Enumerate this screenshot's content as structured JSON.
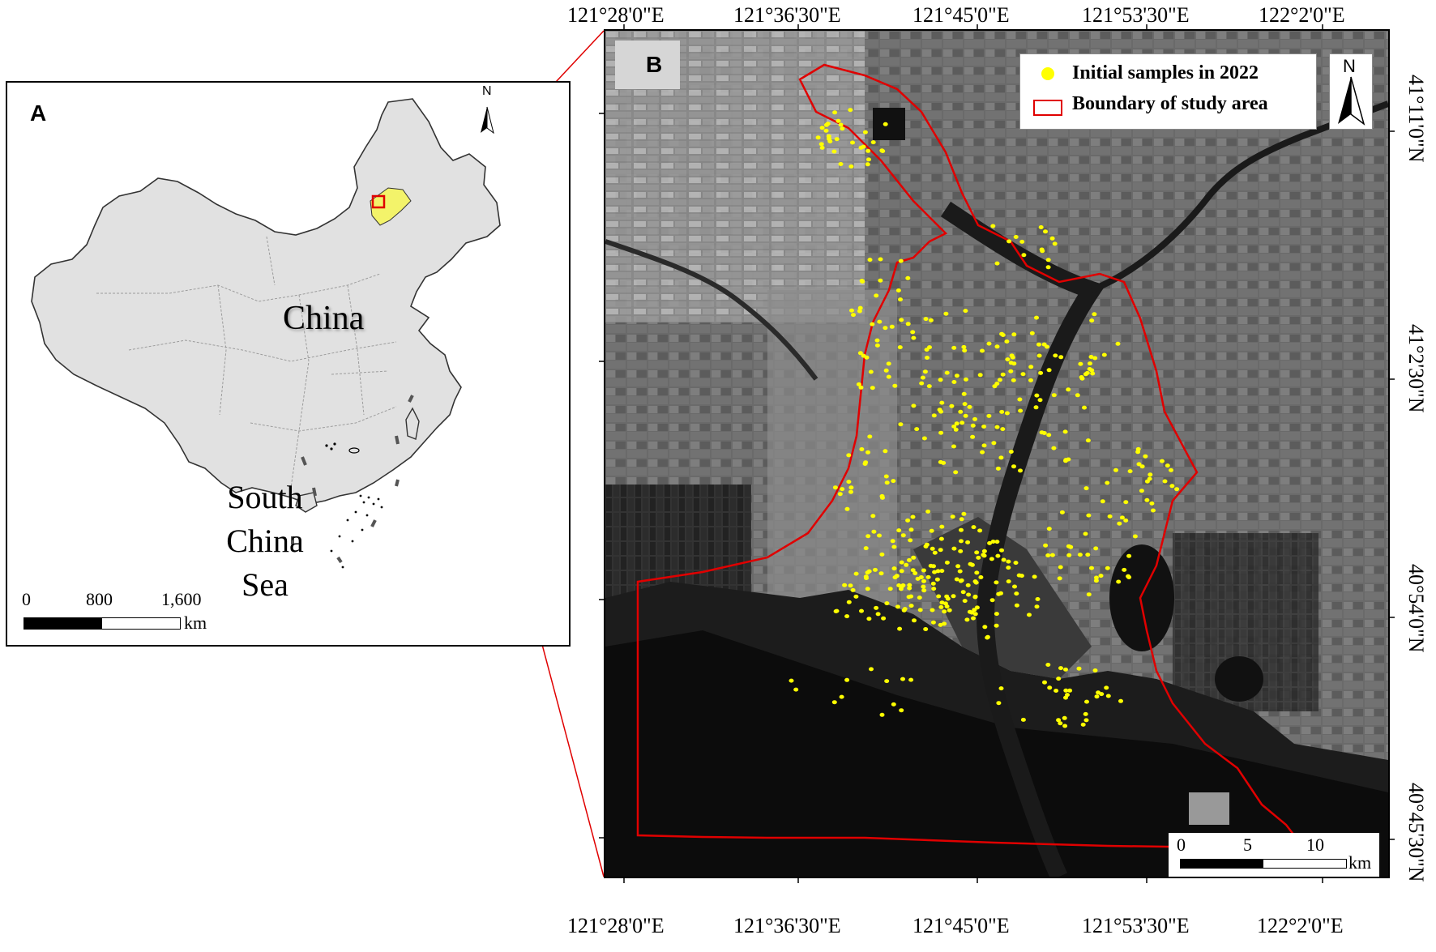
{
  "panel_a": {
    "letter": "A",
    "china_label": "China",
    "sea_label_lines": [
      "South",
      "China",
      "Sea"
    ],
    "scalebar": {
      "labels": [
        "0",
        "800",
        "1,600"
      ],
      "unit": "km"
    },
    "north_label": "N",
    "colors": {
      "land": "#e1e1e1",
      "highlight": "#f3f36a",
      "province_border": "#9c9c9c",
      "study_box": "#e00000"
    }
  },
  "panel_b": {
    "letter": "B",
    "legend": {
      "samples_label": "Initial samples in 2022",
      "boundary_label": "Boundary of study area"
    },
    "north_label": "N",
    "scalebar": {
      "labels": [
        "0",
        "5",
        "10"
      ],
      "unit": "km"
    },
    "top_longitudes": [
      "121°28'0\"E",
      "121°36'30\"E",
      "121°45'0\"E",
      "121°53'30\"E",
      "122°2'0\"E"
    ],
    "bottom_longitudes": [
      "121°28'0\"E",
      "121°36'30\"E",
      "121°45'0\"E",
      "121°53'30\"E",
      "122°2'0\"E"
    ],
    "latitudes": [
      "41°11'0\"N",
      "41°2'30\"N",
      "40°54'0\"N",
      "40°45'30\"N"
    ],
    "colors": {
      "sample_dot": "#ffff00",
      "boundary": "#e00000",
      "imagery": "#4b4b4b"
    }
  }
}
